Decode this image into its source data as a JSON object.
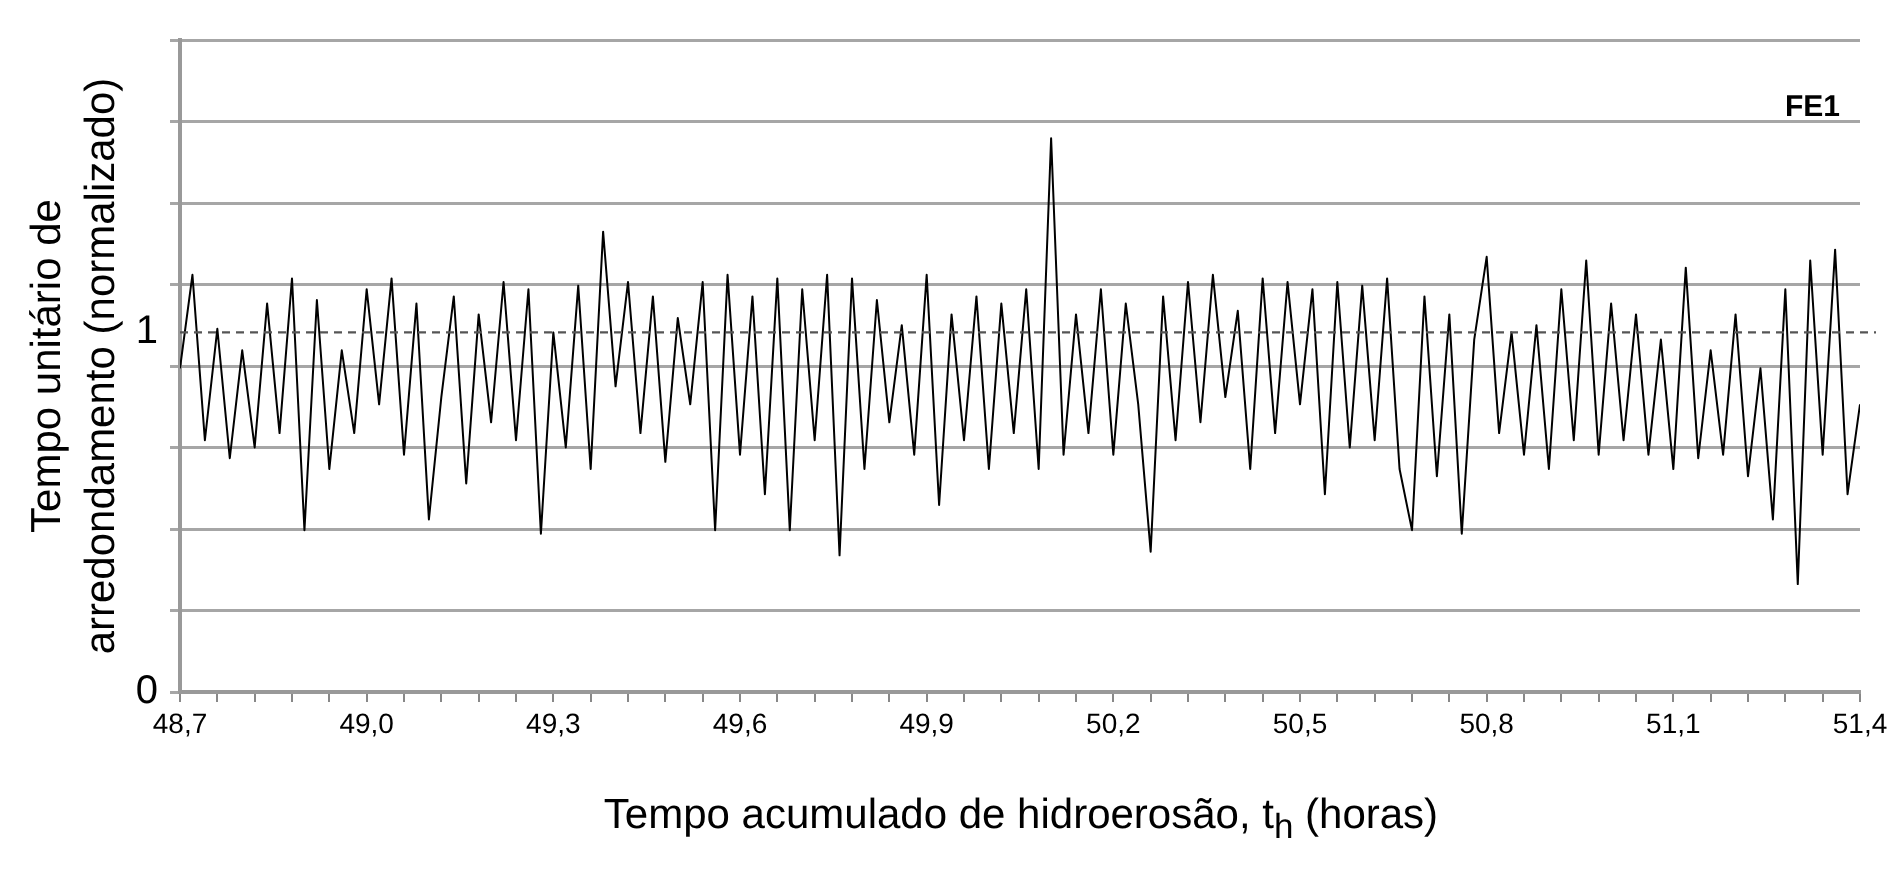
{
  "chart_data": {
    "type": "line",
    "xlabel": "Tempo acumulado de hidroerosão, t$_{h}$ (horas)",
    "ylabel": "Tempo unitário de arredondamento (normalizado)",
    "annotations": [
      "FE1"
    ],
    "x": [
      48.7,
      48.72,
      48.74,
      48.76,
      48.78,
      48.8,
      48.82,
      48.84,
      48.86,
      48.88,
      48.9,
      48.92,
      48.94,
      48.96,
      48.98,
      49.0,
      49.02,
      49.04,
      49.06,
      49.08,
      49.1,
      49.12,
      49.14,
      49.16,
      49.18,
      49.2,
      49.22,
      49.24,
      49.26,
      49.28,
      49.3,
      49.32,
      49.34,
      49.36,
      49.38,
      49.4,
      49.42,
      49.44,
      49.46,
      49.48,
      49.5,
      49.52,
      49.54,
      49.56,
      49.58,
      49.6,
      49.62,
      49.64,
      49.66,
      49.68,
      49.7,
      49.72,
      49.74,
      49.76,
      49.78,
      49.8,
      49.82,
      49.84,
      49.86,
      49.88,
      49.9,
      49.92,
      49.94,
      49.96,
      49.98,
      50.0,
      50.02,
      50.04,
      50.06,
      50.08,
      50.1,
      50.12,
      50.14,
      50.16,
      50.18,
      50.2,
      50.22,
      50.24,
      50.26,
      50.28,
      50.3,
      50.32,
      50.34,
      50.36,
      50.38,
      50.4,
      50.42,
      50.44,
      50.46,
      50.48,
      50.5,
      50.52,
      50.54,
      50.56,
      50.58,
      50.6,
      50.62,
      50.64,
      50.66,
      50.68,
      50.7,
      50.72,
      50.74,
      50.76,
      50.78,
      50.8,
      50.82,
      50.84,
      50.86,
      50.88,
      50.9,
      50.92,
      50.94,
      50.96,
      50.98,
      51.0,
      51.02,
      51.04,
      51.06,
      51.08,
      51.1,
      51.12,
      51.14,
      51.16,
      51.18,
      51.2,
      51.22,
      51.24,
      51.26,
      51.28,
      51.3,
      51.32,
      51.34,
      51.36,
      51.38,
      51.4
    ],
    "series": [
      {
        "color": "#000000",
        "values": [
          0.9,
          1.16,
          0.7,
          1.01,
          0.65,
          0.95,
          0.68,
          1.08,
          0.72,
          1.15,
          0.45,
          1.09,
          0.62,
          0.95,
          0.72,
          1.12,
          0.8,
          1.15,
          0.66,
          1.08,
          0.48,
          0.82,
          1.1,
          0.58,
          1.05,
          0.75,
          1.14,
          0.7,
          1.12,
          0.44,
          1.0,
          0.68,
          1.13,
          0.62,
          1.28,
          0.85,
          1.14,
          0.72,
          1.1,
          0.64,
          1.04,
          0.8,
          1.14,
          0.45,
          1.16,
          0.66,
          1.1,
          0.55,
          1.15,
          0.45,
          1.12,
          0.7,
          1.16,
          0.38,
          1.15,
          0.62,
          1.09,
          0.75,
          1.02,
          0.66,
          1.16,
          0.52,
          1.05,
          0.7,
          1.1,
          0.62,
          1.08,
          0.72,
          1.12,
          0.62,
          1.54,
          0.66,
          1.05,
          0.72,
          1.12,
          0.66,
          1.08,
          0.8,
          0.39,
          1.1,
          0.7,
          1.14,
          0.75,
          1.16,
          0.82,
          1.06,
          0.62,
          1.15,
          0.72,
          1.14,
          0.8,
          1.12,
          0.55,
          1.14,
          0.68,
          1.13,
          0.7,
          1.15,
          0.62,
          0.45,
          1.1,
          0.6,
          1.05,
          0.44,
          0.98,
          1.21,
          0.72,
          1.0,
          0.66,
          1.02,
          0.62,
          1.12,
          0.7,
          1.2,
          0.66,
          1.08,
          0.7,
          1.05,
          0.66,
          0.98,
          0.62,
          1.18,
          0.65,
          0.95,
          0.66,
          1.05,
          0.6,
          0.9,
          0.48,
          1.12,
          0.3,
          1.2,
          0.66,
          1.23,
          0.55,
          0.8
        ]
      }
    ],
    "xlim": [
      48.7,
      51.4
    ],
    "xticks": [
      {
        "value": 48.7,
        "label": "48,7"
      },
      {
        "value": 48.76,
        "label": null
      },
      {
        "value": 48.82,
        "label": null
      },
      {
        "value": 48.88,
        "label": null
      },
      {
        "value": 48.94,
        "label": null
      },
      {
        "value": 49.0,
        "label": "49,0"
      },
      {
        "value": 49.06,
        "label": null
      },
      {
        "value": 49.12,
        "label": null
      },
      {
        "value": 49.18,
        "label": null
      },
      {
        "value": 49.24,
        "label": null
      },
      {
        "value": 49.3,
        "label": "49,3"
      },
      {
        "value": 49.36,
        "label": null
      },
      {
        "value": 49.42,
        "label": null
      },
      {
        "value": 49.48,
        "label": null
      },
      {
        "value": 49.54,
        "label": null
      },
      {
        "value": 49.6,
        "label": "49,6"
      },
      {
        "value": 49.66,
        "label": null
      },
      {
        "value": 49.72,
        "label": null
      },
      {
        "value": 49.78,
        "label": null
      },
      {
        "value": 49.84,
        "label": null
      },
      {
        "value": 49.9,
        "label": "49,9"
      },
      {
        "value": 49.96,
        "label": null
      },
      {
        "value": 50.02,
        "label": null
      },
      {
        "value": 50.08,
        "label": null
      },
      {
        "value": 50.14,
        "label": null
      },
      {
        "value": 50.2,
        "label": "50,2"
      },
      {
        "value": 50.26,
        "label": null
      },
      {
        "value": 50.32,
        "label": null
      },
      {
        "value": 50.38,
        "label": null
      },
      {
        "value": 50.44,
        "label": null
      },
      {
        "value": 50.5,
        "label": "50,5"
      },
      {
        "value": 50.56,
        "label": null
      },
      {
        "value": 50.62,
        "label": null
      },
      {
        "value": 50.68,
        "label": null
      },
      {
        "value": 50.74,
        "label": null
      },
      {
        "value": 50.8,
        "label": "50,8"
      },
      {
        "value": 50.86,
        "label": null
      },
      {
        "value": 50.92,
        "label": null
      },
      {
        "value": 50.98,
        "label": null
      },
      {
        "value": 51.04,
        "label": null
      },
      {
        "value": 51.1,
        "label": "51,1"
      },
      {
        "value": 51.16,
        "label": null
      },
      {
        "value": 51.22,
        "label": null
      },
      {
        "value": 51.28,
        "label": null
      },
      {
        "value": 51.34,
        "label": null
      },
      {
        "value": 51.4,
        "label": "51,4"
      }
    ],
    "ylim": [
      0,
      1.813
    ],
    "yticks": [
      0,
      {
        "value": 0.227,
        "label": null
      },
      {
        "value": 0.453,
        "label": null
      },
      {
        "value": 0.68,
        "label": null
      },
      {
        "value": 0.906,
        "label": null
      },
      1,
      {
        "value": 1.133,
        "label": null
      },
      {
        "value": 1.359,
        "label": null
      },
      {
        "value": 1.586,
        "label": null
      },
      {
        "value": 1.813,
        "label": null
      }
    ],
    "ref_lines": [
      {
        "axis": "y",
        "value": 1,
        "color": "#555555",
        "line_style": "dashed"
      }
    ],
    "grid": "y",
    "marker": "none"
  }
}
